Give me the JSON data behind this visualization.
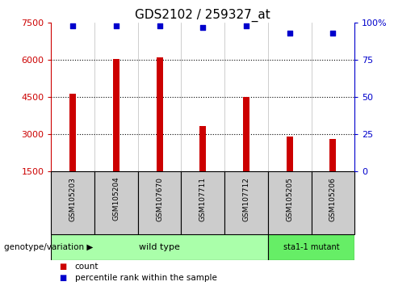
{
  "title": "GDS2102 / 259327_at",
  "samples": [
    "GSM105203",
    "GSM105204",
    "GSM107670",
    "GSM107711",
    "GSM107712",
    "GSM105205",
    "GSM105206"
  ],
  "counts": [
    4650,
    6050,
    6100,
    3350,
    4500,
    2900,
    2820
  ],
  "percentiles": [
    98,
    98,
    98,
    97,
    98,
    93,
    93
  ],
  "ylim_left": [
    1500,
    7500
  ],
  "ylim_right": [
    0,
    100
  ],
  "yticks_left": [
    1500,
    3000,
    4500,
    6000,
    7500
  ],
  "yticks_right": [
    0,
    25,
    50,
    75,
    100
  ],
  "bar_color": "#cc0000",
  "percentile_color": "#0000cc",
  "grid_color": "#000000",
  "bg_color_plot": "#ffffff",
  "sample_bg_color": "#cccccc",
  "wildtype_bg": "#aaffaa",
  "mutant_bg": "#66ee66",
  "wildtype_label": "wild type",
  "mutant_label": "sta1-1 mutant",
  "n_wildtype": 5,
  "n_mutant": 2,
  "genotype_label": "genotype/variation",
  "legend_count": "count",
  "legend_pct": "percentile rank within the sample",
  "title_fontsize": 11,
  "tick_fontsize": 8,
  "bar_width": 0.15
}
